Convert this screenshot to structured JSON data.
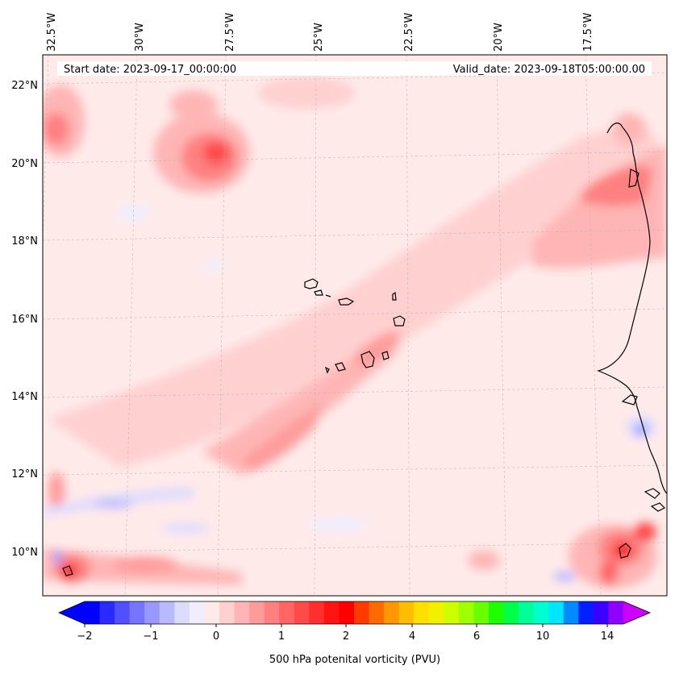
{
  "map": {
    "start_label": "Start date: 2023-09-17_00:00:00",
    "valid_label": "Valid_date: 2023-09-18T05:00:00.00",
    "lon_labels": [
      "32.5°W",
      "30°W",
      "27.5°W",
      "25°W",
      "22.5°W",
      "20°W",
      "17.5°W"
    ],
    "lat_labels": [
      "22°N",
      "20°N",
      "18°N",
      "16°N",
      "14°N",
      "12°N",
      "10°N"
    ]
  },
  "colorbar": {
    "label": "500 hPa potenital vorticity (PVU)",
    "tick_labels": [
      "−2",
      "−1",
      "0",
      "1",
      "2",
      "4",
      "6",
      "10",
      "14"
    ],
    "colors": [
      "#0000ff",
      "#2a2aff",
      "#5050ff",
      "#7575ff",
      "#9898ff",
      "#b9b9ff",
      "#dcdcff",
      "#eeeeff",
      "#ffeaea",
      "#ffd0d0",
      "#ffb5b5",
      "#ff9b9b",
      "#ff8080",
      "#ff6565",
      "#ff4a4a",
      "#ff2f2f",
      "#ff1414",
      "#ff0000",
      "#ff3a00",
      "#ff6a00",
      "#ff9700",
      "#ffbd00",
      "#ffe000",
      "#f0f000",
      "#cdff00",
      "#a0ff00",
      "#6aff00",
      "#1eff00",
      "#00ff4a",
      "#00ff99",
      "#00ffd0",
      "#00e6ff",
      "#008cff",
      "#0020ff",
      "#3a00ff",
      "#9000ff"
    ],
    "extend_min_color": "#0000ff",
    "extend_max_color": "#cc00ff"
  }
}
